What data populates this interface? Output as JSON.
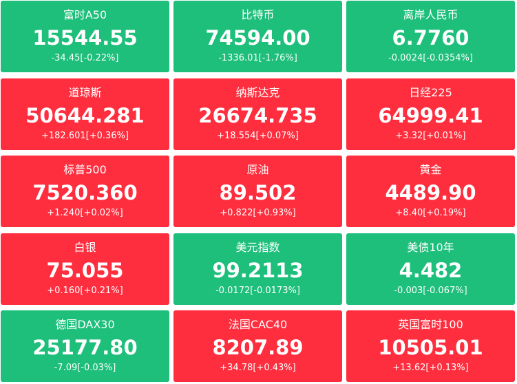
{
  "tiles": [
    {
      "name": "富时A50",
      "price": "15544.55",
      "change": "-34.45[-0.22%]",
      "color": "#1dbf7b"
    },
    {
      "name": "比特币",
      "price": "74594.00",
      "change": "-1336.01[-1.76%]",
      "color": "#1dbf7b"
    },
    {
      "name": "离岸人民币",
      "price": "6.7760",
      "change": "-0.0024[-0.0354%]",
      "color": "#1dbf7b"
    },
    {
      "name": "道琼斯",
      "price": "50644.281",
      "change": "+182.601[+0.36%]",
      "color": "#fe2e3e"
    },
    {
      "name": "纳斯达克",
      "price": "26674.735",
      "change": "+18.554[+0.07%]",
      "color": "#fe2e3e"
    },
    {
      "name": "日经225",
      "price": "64999.41",
      "change": "+3.32[+0.01%]",
      "color": "#fe2e3e"
    },
    {
      "name": "标普500",
      "price": "7520.360",
      "change": "+1.240[+0.02%]",
      "color": "#fe2e3e"
    },
    {
      "name": "原油",
      "price": "89.502",
      "change": "+0.822[+0.93%]",
      "color": "#fe2e3e"
    },
    {
      "name": "黄金",
      "price": "4489.90",
      "change": "+8.40[+0.19%]",
      "color": "#fe2e3e"
    },
    {
      "name": "白银",
      "price": "75.055",
      "change": "+0.160[+0.21%]",
      "color": "#fe2e3e"
    },
    {
      "name": "美元指数",
      "price": "99.2113",
      "change": "-0.0172[-0.0173%]",
      "color": "#1dbf7b"
    },
    {
      "name": "美债10年",
      "price": "4.482",
      "change": "-0.003[-0.067%]",
      "color": "#1dbf7b"
    },
    {
      "name": "德国DAX30",
      "price": "25177.80",
      "change": "-7.09[-0.03%]",
      "color": "#1dbf7b"
    },
    {
      "name": "法国CAC40",
      "price": "8207.89",
      "change": "+34.78[+0.43%]",
      "color": "#fe2e3e"
    },
    {
      "name": "英国富时100",
      "price": "10505.01",
      "change": "+13.62[+0.13%]",
      "color": "#fe2e3e"
    }
  ]
}
